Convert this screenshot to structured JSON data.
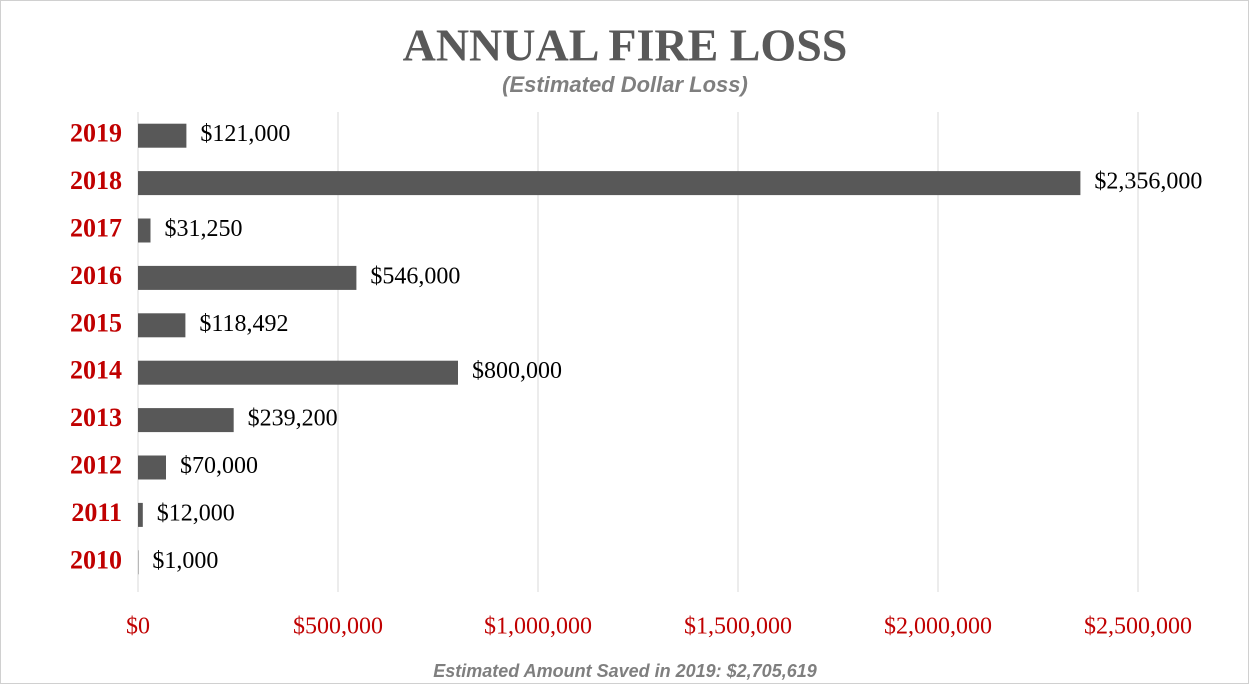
{
  "chart_data": {
    "type": "barh",
    "title": "ANNUAL FIRE LOSS",
    "subtitle": "(Estimated Dollar Loss)",
    "annotation": "Estimated Amount Saved in 2019: $2,705,619",
    "categories": [
      "2019",
      "2018",
      "2017",
      "2016",
      "2015",
      "2014",
      "2013",
      "2012",
      "2011",
      "2010"
    ],
    "values": [
      121000,
      2356000,
      31250,
      546000,
      118492,
      800000,
      239200,
      70000,
      12000,
      1000
    ],
    "value_labels": [
      "$121,000",
      "$2,356,000",
      "$31,250",
      "$546,000",
      "$118,492",
      "$800,000",
      "$239,200",
      "$70,000",
      "$12,000",
      "$1,000"
    ],
    "color": "#585858",
    "xlim": [
      0,
      2700000
    ],
    "xticks": [
      {
        "value": 0,
        "label": "$0"
      },
      {
        "value": 500000,
        "label": "$500,000"
      },
      {
        "value": 1000000,
        "label": "$1,000,000"
      },
      {
        "value": 1500000,
        "label": "$1,500,000"
      },
      {
        "value": 2000000,
        "label": "$2,000,000"
      },
      {
        "value": 2500000,
        "label": "$2,500,000"
      }
    ],
    "grid": true
  }
}
